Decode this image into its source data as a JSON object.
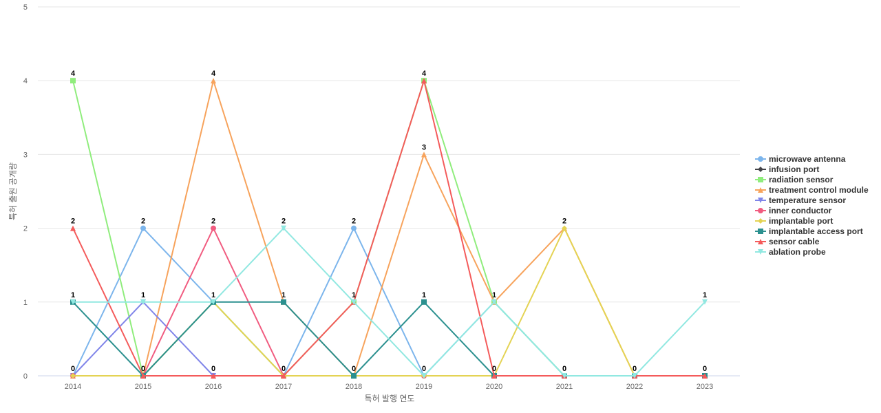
{
  "chart_data": {
    "type": "line",
    "title": "",
    "xlabel": "특허 발행 연도",
    "ylabel": "특허 출원 공개량",
    "categories": [
      "2014",
      "2015",
      "2016",
      "2017",
      "2018",
      "2019",
      "2020",
      "2021",
      "2022",
      "2023"
    ],
    "ylim": [
      0,
      5
    ],
    "yticks": [
      0,
      1,
      2,
      3,
      4,
      5
    ],
    "grid": "horizontal",
    "legend_position": "right",
    "series": [
      {
        "name": "microwave antenna",
        "color": "#7cb5ec",
        "marker": "circle",
        "values": [
          0,
          2,
          1,
          0,
          2,
          0,
          1,
          0,
          0,
          0
        ]
      },
      {
        "name": "infusion port",
        "color": "#434348",
        "marker": "diamond",
        "values": [
          0,
          0,
          0,
          0,
          0,
          0,
          0,
          0,
          0,
          0
        ]
      },
      {
        "name": "radiation sensor",
        "color": "#90ed7d",
        "marker": "square",
        "values": [
          4,
          0,
          1,
          0,
          1,
          4,
          1,
          0,
          0,
          0
        ]
      },
      {
        "name": "treatment control module",
        "color": "#f7a35c",
        "marker": "triangle",
        "values": [
          0,
          0,
          4,
          1,
          0,
          3,
          1,
          2,
          0,
          0
        ]
      },
      {
        "name": "temperature sensor",
        "color": "#8085e9",
        "marker": "triangle-down",
        "values": [
          0,
          1,
          0,
          0,
          0,
          0,
          0,
          0,
          0,
          0
        ]
      },
      {
        "name": "inner conductor",
        "color": "#f15c80",
        "marker": "circle",
        "values": [
          0,
          0,
          2,
          0,
          0,
          0,
          0,
          0,
          0,
          0
        ]
      },
      {
        "name": "implantable port",
        "color": "#e4d354",
        "marker": "diamond",
        "values": [
          0,
          0,
          1,
          0,
          0,
          0,
          0,
          2,
          0,
          0
        ]
      },
      {
        "name": "implantable access port",
        "color": "#2b908f",
        "marker": "square",
        "values": [
          1,
          0,
          1,
          1,
          0,
          1,
          0,
          0,
          0,
          0
        ]
      },
      {
        "name": "sensor cable",
        "color": "#f45b5b",
        "marker": "triangle",
        "values": [
          2,
          0,
          0,
          0,
          1,
          4,
          0,
          0,
          0,
          0
        ]
      },
      {
        "name": "ablation probe",
        "color": "#91e8e1",
        "marker": "triangle-down",
        "values": [
          1,
          1,
          1,
          2,
          1,
          0,
          1,
          0,
          0,
          1
        ]
      }
    ],
    "data_labels": [
      {
        "x": "2014",
        "labels": [
          "4",
          "2",
          "1",
          "0"
        ]
      },
      {
        "x": "2015",
        "labels": [
          "2",
          "1",
          "0"
        ]
      },
      {
        "x": "2016",
        "labels": [
          "4",
          "2",
          "1",
          "0"
        ]
      },
      {
        "x": "2017",
        "labels": [
          "2",
          "1",
          "0"
        ]
      },
      {
        "x": "2018",
        "labels": [
          "2",
          "1",
          "0"
        ]
      },
      {
        "x": "2019",
        "labels": [
          "4",
          "3",
          "1",
          "0"
        ]
      },
      {
        "x": "2020",
        "labels": [
          "1",
          "0"
        ]
      },
      {
        "x": "2021",
        "labels": [
          "2",
          "0"
        ]
      },
      {
        "x": "2022",
        "labels": [
          "0"
        ]
      },
      {
        "x": "2023",
        "labels": [
          "1",
          "0"
        ]
      }
    ]
  }
}
